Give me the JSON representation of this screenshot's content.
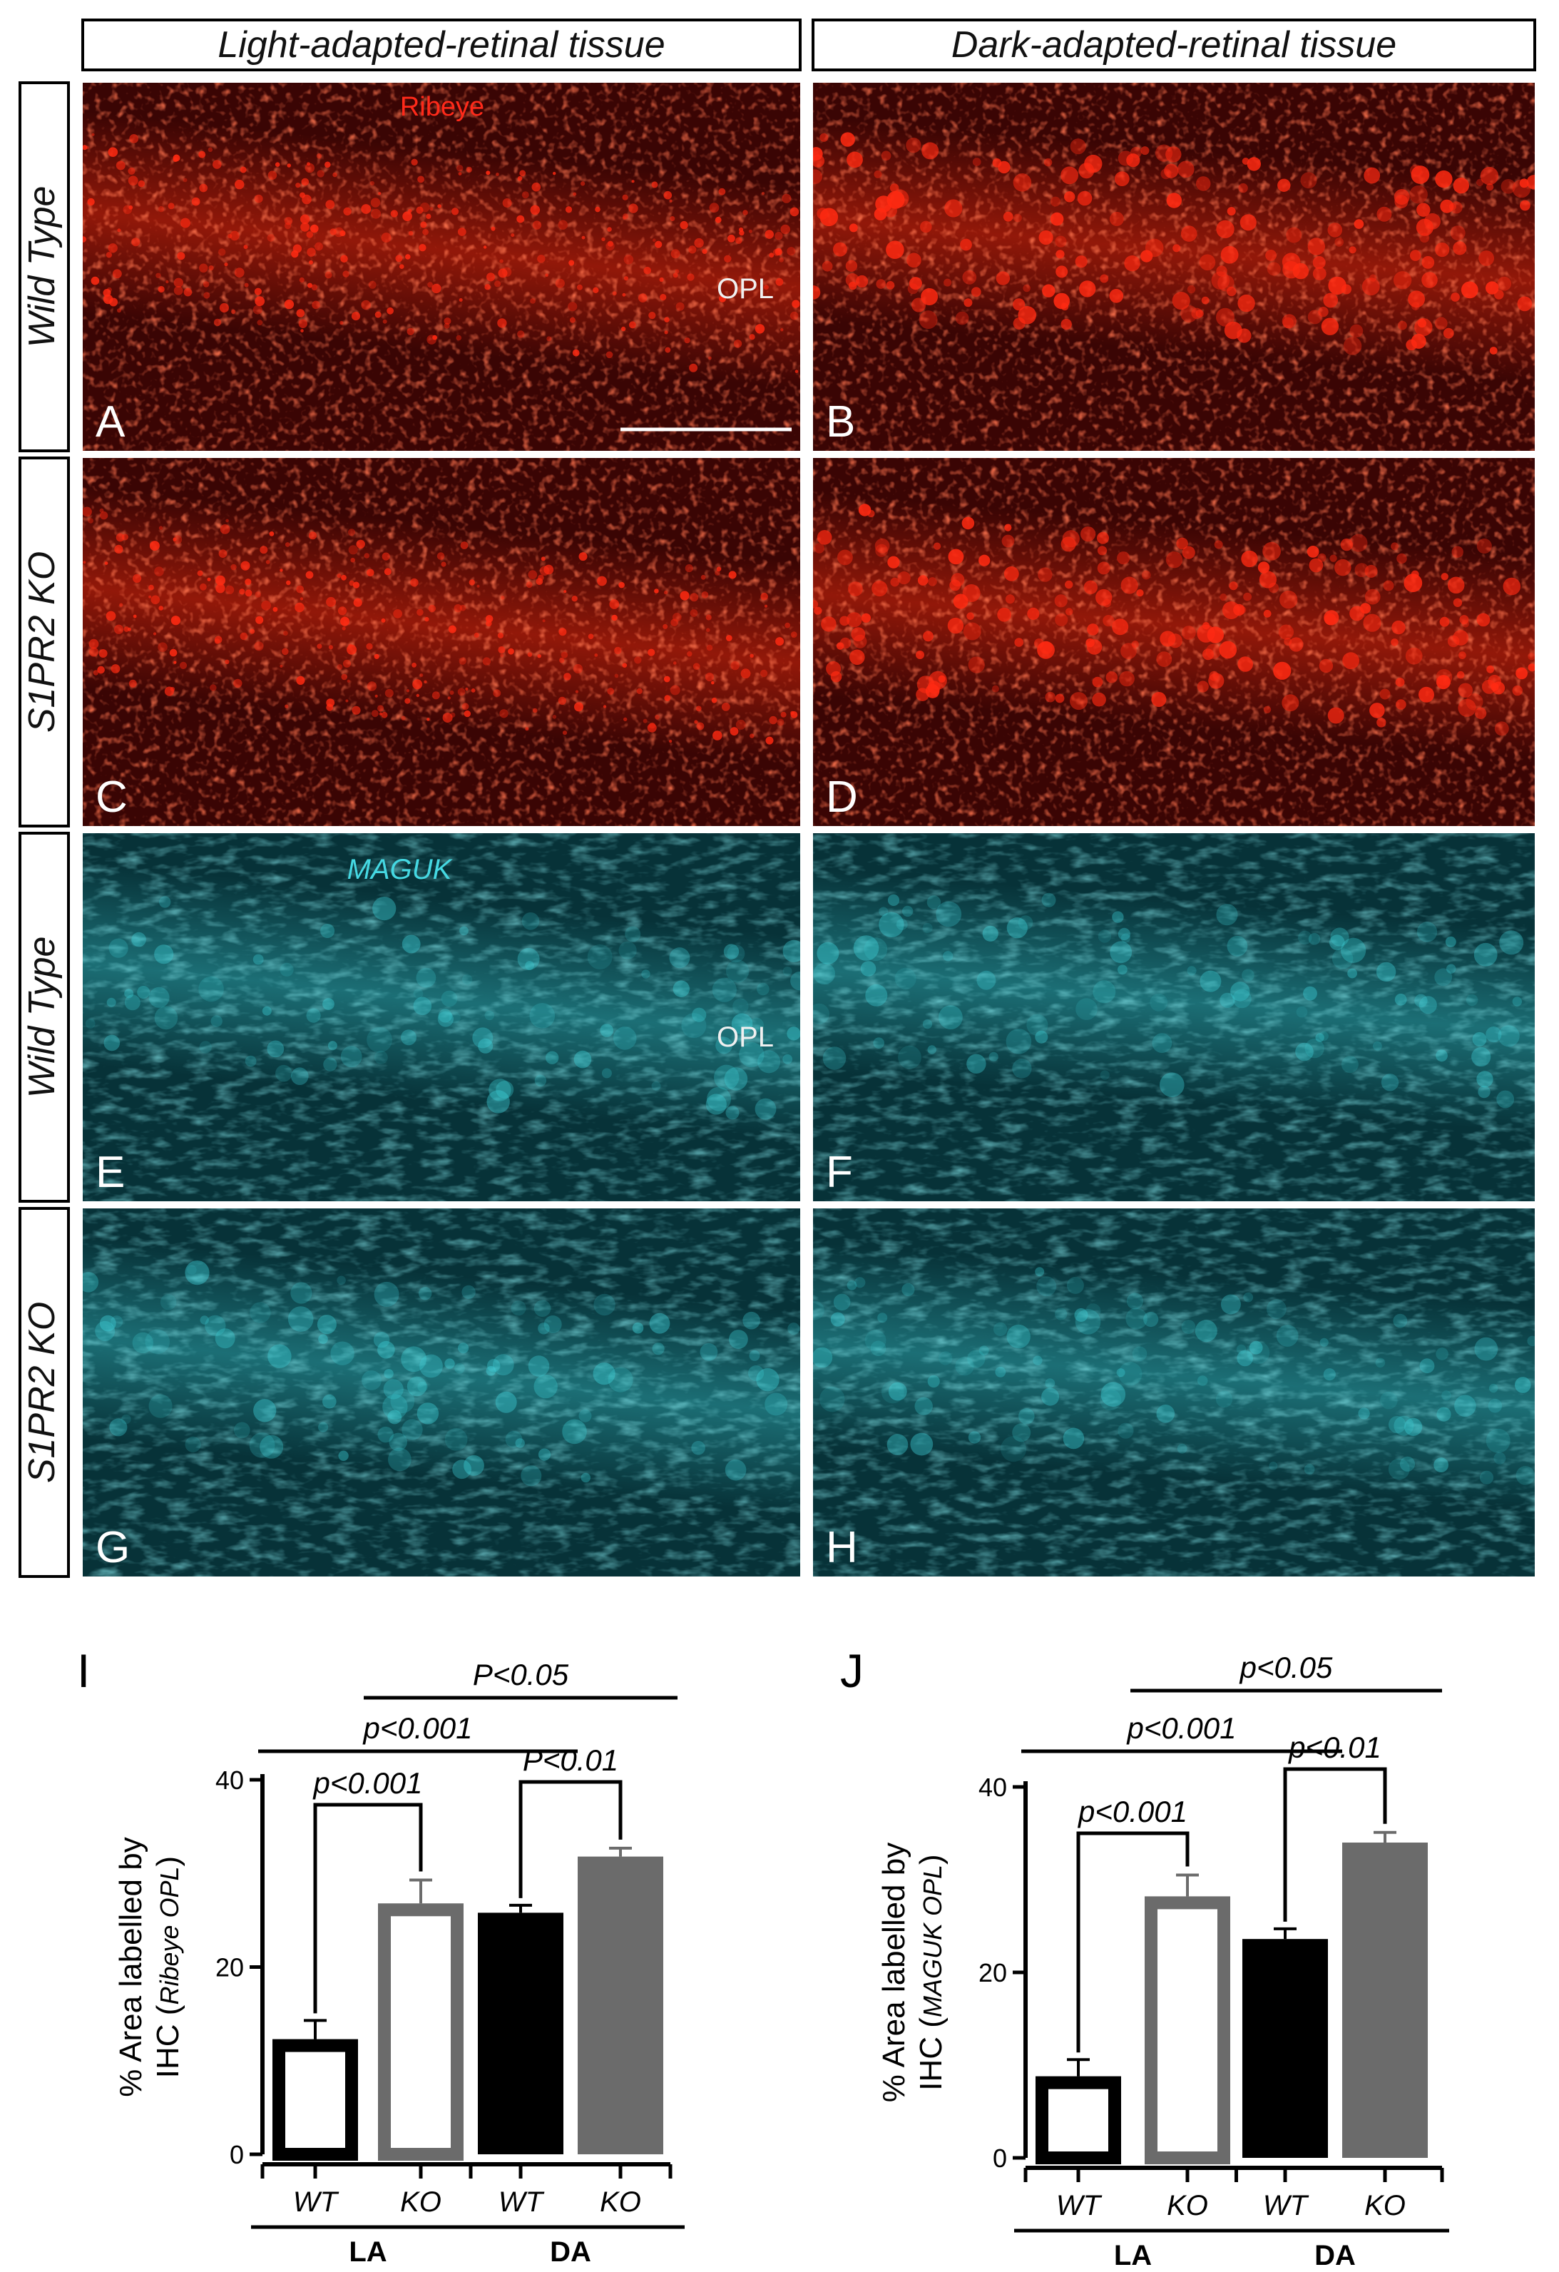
{
  "columns": [
    "Light-adapted-retinal tissue",
    "Dark-adapted-retinal tissue"
  ],
  "rows": [
    "Wild Type",
    "S1PR2 KO",
    "Wild Type",
    "S1PR2 KO"
  ],
  "panels": [
    {
      "letter": "A",
      "stain": "red"
    },
    {
      "letter": "B",
      "stain": "red"
    },
    {
      "letter": "C",
      "stain": "red"
    },
    {
      "letter": "D",
      "stain": "red"
    },
    {
      "letter": "E",
      "stain": "cyan"
    },
    {
      "letter": "F",
      "stain": "cyan"
    },
    {
      "letter": "G",
      "stain": "cyan"
    },
    {
      "letter": "H",
      "stain": "cyan"
    }
  ],
  "stains": {
    "ribeye": "Ribeye",
    "maguk": "MAGUK"
  },
  "layer_label": "OPL",
  "colors": {
    "red_bg": "#3a0504",
    "red_signal": "#ff2a12",
    "cyan_bg": "#073238",
    "cyan_signal": "#3fd2da",
    "bar_black": "#000000",
    "bar_gray": "#6b6b6b"
  },
  "chart_data": [
    {
      "panel": "I",
      "type": "bar",
      "ylabel_main": "% Area labelled by",
      "ylabel_sub_prefix": "IHC (",
      "ylabel_sub_italic": "Ribeye OPL",
      "ylabel_sub_suffix": ")",
      "ylim": [
        0,
        40
      ],
      "yticks": [
        "0",
        "20",
        "40"
      ],
      "categories": [
        "WT",
        "KO",
        "WT",
        "KO"
      ],
      "groups": [
        "LA",
        "DA"
      ],
      "values": [
        12.3,
        26.8,
        25.8,
        31.8
      ],
      "errors": [
        2.0,
        2.5,
        0.8,
        0.9
      ],
      "bar_styles": [
        "outline-black",
        "outline-gray",
        "filled-black",
        "filled-gray"
      ],
      "comparisons": [
        {
          "label": "p<0.001",
          "a": 0,
          "b": 1
        },
        {
          "label": "P<0.01",
          "a": 2,
          "b": 3
        },
        {
          "label": "p<0.001",
          "a": 0,
          "b": 2
        },
        {
          "label": "P<0.05",
          "a": 1,
          "b": 3
        }
      ]
    },
    {
      "panel": "J",
      "type": "bar",
      "ylabel_main": "% Area labelled by",
      "ylabel_sub_prefix": "IHC (",
      "ylabel_sub_italic": "MAGUK OPL",
      "ylabel_sub_suffix": ")",
      "ylim": [
        0,
        40
      ],
      "yticks": [
        "0",
        "20",
        "40"
      ],
      "categories": [
        "WT",
        "KO",
        "WT",
        "KO"
      ],
      "groups": [
        "LA",
        "DA"
      ],
      "values": [
        8.8,
        28.2,
        23.6,
        34.0
      ],
      "errors": [
        1.8,
        2.3,
        1.1,
        1.1
      ],
      "bar_styles": [
        "outline-black",
        "outline-gray",
        "filled-black",
        "filled-gray"
      ],
      "comparisons": [
        {
          "label": "p<0.001",
          "a": 0,
          "b": 1
        },
        {
          "label": "p<0.01",
          "a": 2,
          "b": 3
        },
        {
          "label": "p<0.001",
          "a": 0,
          "b": 2
        },
        {
          "label": "p<0.05",
          "a": 1,
          "b": 3
        }
      ]
    }
  ]
}
